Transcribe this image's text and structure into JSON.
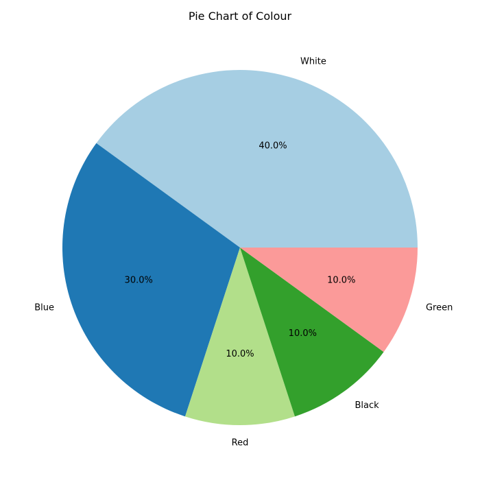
{
  "chart_data": {
    "type": "pie",
    "title": "Pie Chart of Colour",
    "labels": [
      "White",
      "Blue",
      "Red",
      "Black",
      "Green"
    ],
    "values": [
      40,
      30,
      10,
      10,
      10
    ],
    "percent_labels": [
      "40.0%",
      "30.0%",
      "10.0%",
      "10.0%",
      "10.0%"
    ],
    "colors": [
      "#a6cee3",
      "#1f78b4",
      "#b2df8a",
      "#33a02c",
      "#fb9a99"
    ],
    "start_angle_deg": 0,
    "direction": "counterclockwise",
    "legend": "none"
  }
}
